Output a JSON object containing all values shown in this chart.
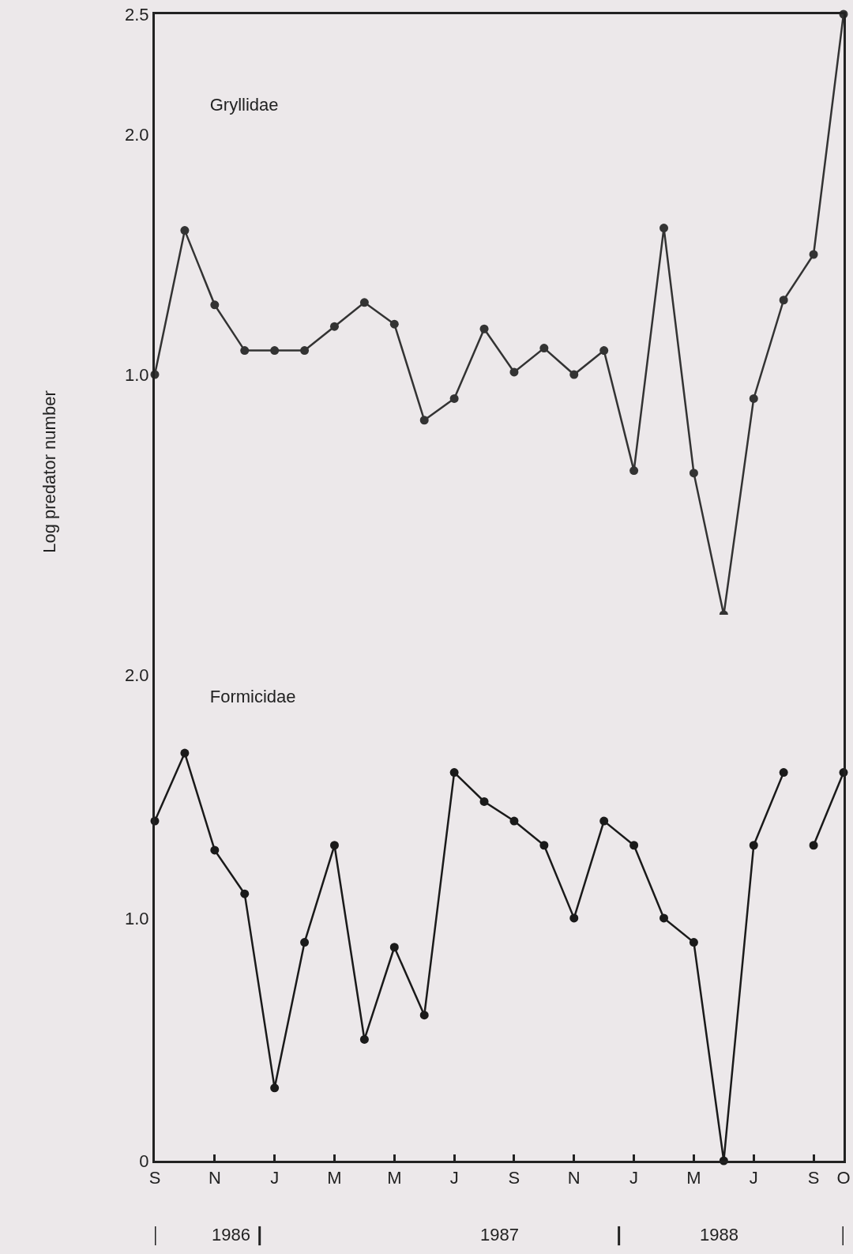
{
  "chart_data": [
    {
      "type": "line",
      "title": "Gryllidae",
      "ylabel": "Log predator number",
      "marker": "circle",
      "tick_labels": "y",
      "categories": [
        null,
        null,
        null,
        null,
        null,
        null,
        null,
        null,
        null,
        null,
        null,
        null,
        null,
        null,
        null,
        null,
        null,
        null,
        null,
        null,
        null,
        null,
        null,
        null
      ],
      "ylim": [
        0,
        2.5
      ],
      "yticks": [
        {
          "value": 1.0,
          "label": "1.0"
        },
        {
          "value": 2.0,
          "label": "2.0"
        },
        {
          "value": 2.5,
          "label": "2.5"
        }
      ],
      "series": [
        {
          "color": "#333333",
          "values": [
            1.0,
            1.6,
            1.29,
            1.1,
            1.1,
            1.1,
            1.2,
            1.3,
            1.21,
            0.81,
            0.9,
            1.19,
            1.01,
            1.11,
            1.0,
            1.1,
            0.6,
            1.61,
            0.59,
            0.0,
            0.9,
            1.31,
            1.5,
            2.5
          ]
        }
      ]
    },
    {
      "type": "line",
      "title": "Formicidae",
      "marker": "circle",
      "categories": [
        "S",
        null,
        "N",
        null,
        "J",
        null,
        "M",
        null,
        "M",
        null,
        "J",
        null,
        "S",
        null,
        "N",
        null,
        "J",
        null,
        "M",
        null,
        "J",
        null,
        "S",
        "O"
      ],
      "ylim": [
        0,
        2.25
      ],
      "yticks": [
        0,
        {
          "value": 1.0,
          "label": "1.0"
        },
        {
          "value": 2.0,
          "label": "2.0"
        }
      ],
      "annotations": [
        "1986",
        "1987",
        "1988"
      ],
      "series": [
        {
          "color": "#1a1a1a",
          "values": [
            1.4,
            1.68,
            1.28,
            1.1,
            0.3,
            0.9,
            1.3,
            0.5,
            0.88,
            0.6,
            1.6,
            1.48,
            1.4,
            1.3,
            1.0,
            1.4,
            1.3,
            1.0,
            0.9,
            0.0,
            1.3,
            1.6,
            null,
            null
          ]
        },
        {
          "color": "#1a1a1a",
          "values": [
            null,
            null,
            null,
            null,
            null,
            null,
            null,
            null,
            null,
            null,
            null,
            null,
            null,
            null,
            null,
            null,
            null,
            null,
            null,
            null,
            null,
            null,
            1.3,
            1.6
          ]
        }
      ]
    }
  ]
}
